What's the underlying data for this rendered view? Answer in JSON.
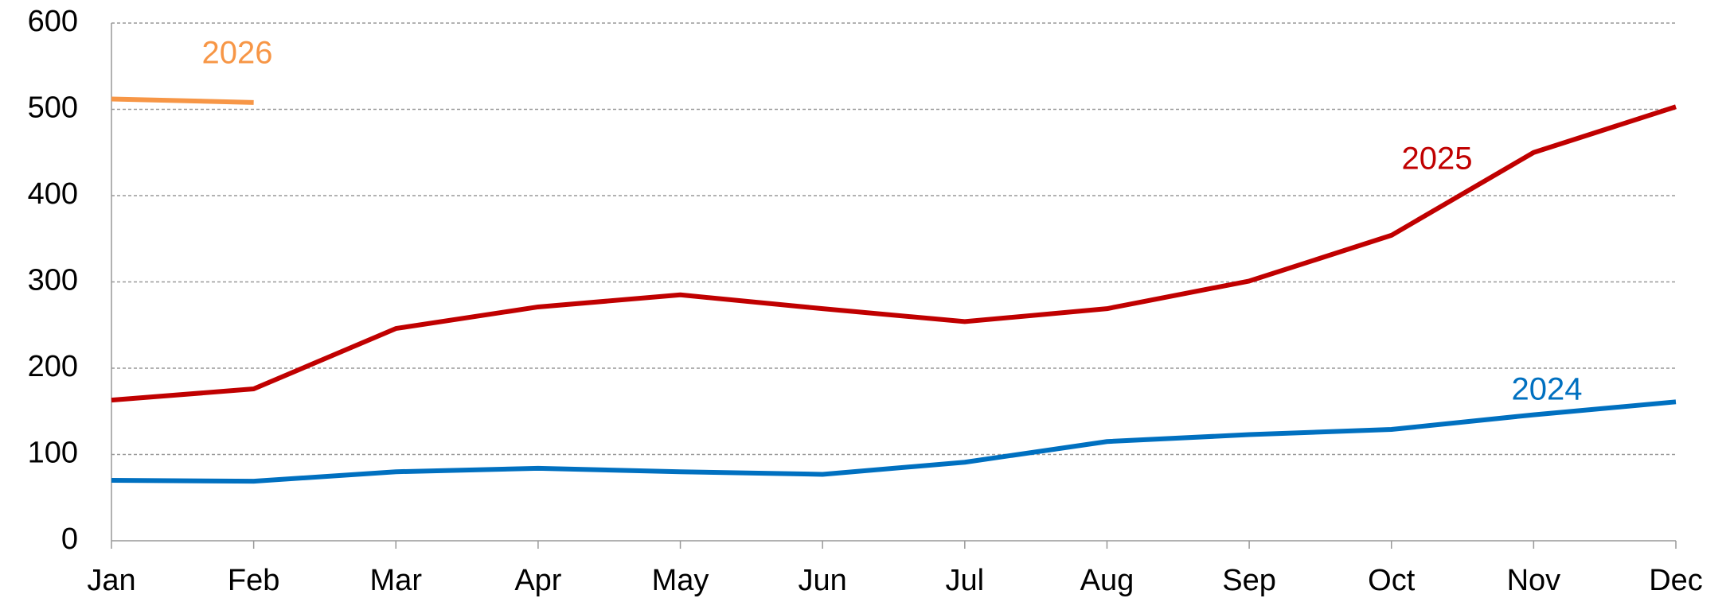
{
  "chart_data": {
    "type": "line",
    "categories": [
      "Jan",
      "Feb",
      "Mar",
      "Apr",
      "May",
      "Jun",
      "Jul",
      "Aug",
      "Sep",
      "Oct",
      "Nov",
      "Dec"
    ],
    "series": [
      {
        "name": "2024",
        "color": "#0070c0",
        "values": [
          70,
          69,
          80,
          84,
          80,
          77,
          91,
          115,
          123,
          129,
          146,
          161
        ]
      },
      {
        "name": "2025",
        "color": "#c00000",
        "values": [
          163,
          176,
          246,
          271,
          285,
          269,
          254,
          269,
          301,
          354,
          450,
          503
        ]
      },
      {
        "name": "2026",
        "color": "#f79646",
        "values": [
          512,
          508,
          null,
          null,
          null,
          null,
          null,
          null,
          null,
          null,
          null,
          null
        ]
      }
    ],
    "ylim": [
      0,
      600
    ],
    "yticks": [
      0,
      100,
      200,
      300,
      400,
      500,
      600
    ],
    "grid": true
  }
}
